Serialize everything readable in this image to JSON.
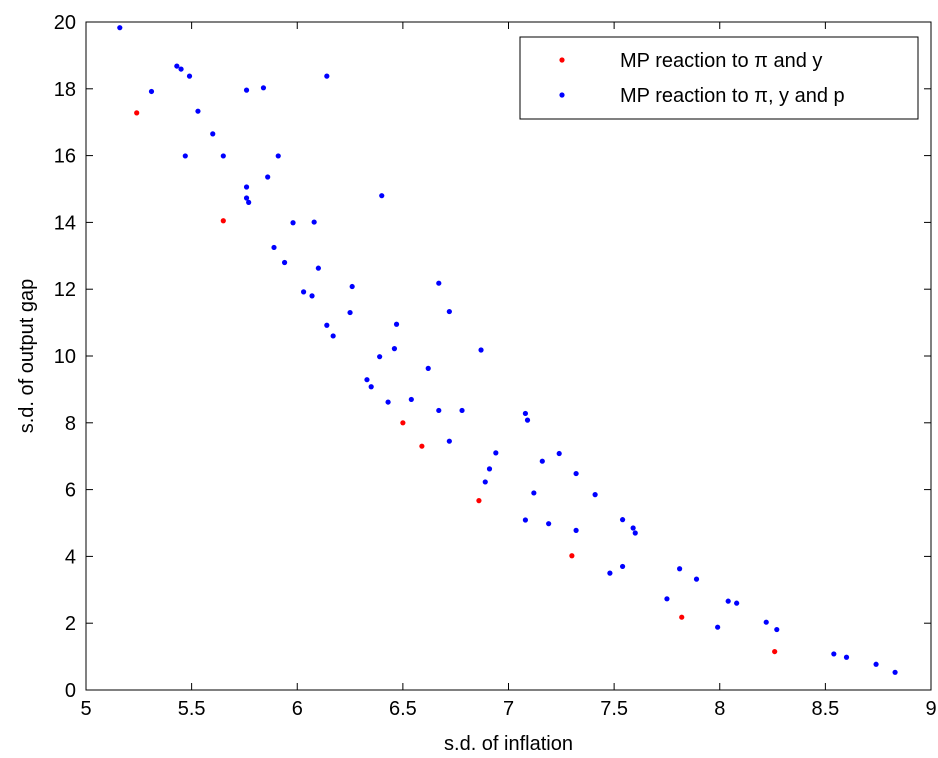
{
  "chart_data": {
    "type": "scatter",
    "xlabel": "s.d. of inflation",
    "ylabel": "s.d. of output gap",
    "xlim": [
      5,
      9
    ],
    "ylim": [
      0,
      20
    ],
    "xticks": [
      "5",
      "5.5",
      "6",
      "6.5",
      "7",
      "7.5",
      "8",
      "8.5",
      "9"
    ],
    "yticks": [
      "0",
      "2",
      "4",
      "6",
      "8",
      "10",
      "12",
      "14",
      "16",
      "18",
      "20"
    ],
    "grid": false,
    "legend_position": "top-right",
    "series": [
      {
        "name": "MP reaction to π and y",
        "color": "#ff0000",
        "points": [
          [
            5.24,
            17.28
          ],
          [
            5.65,
            14.05
          ],
          [
            6.5,
            8.0
          ],
          [
            6.59,
            7.3
          ],
          [
            6.86,
            5.67
          ],
          [
            7.3,
            4.02
          ],
          [
            7.82,
            2.18
          ],
          [
            8.26,
            1.15
          ]
        ]
      },
      {
        "name": "MP reaction to π, y and p",
        "color": "#0000ff",
        "points": [
          [
            5.16,
            19.83
          ],
          [
            5.43,
            18.68
          ],
          [
            5.45,
            18.59
          ],
          [
            5.49,
            18.38
          ],
          [
            5.31,
            17.92
          ],
          [
            5.53,
            17.33
          ],
          [
            5.6,
            16.65
          ],
          [
            5.47,
            15.99
          ],
          [
            5.65,
            15.99
          ],
          [
            5.76,
            17.96
          ],
          [
            5.84,
            18.03
          ],
          [
            6.14,
            18.38
          ],
          [
            5.76,
            15.06
          ],
          [
            5.76,
            14.73
          ],
          [
            5.77,
            14.6
          ],
          [
            5.86,
            15.36
          ],
          [
            5.91,
            15.99
          ],
          [
            5.98,
            13.99
          ],
          [
            6.08,
            14.01
          ],
          [
            5.89,
            13.25
          ],
          [
            5.94,
            12.8
          ],
          [
            6.1,
            12.63
          ],
          [
            6.03,
            11.92
          ],
          [
            6.07,
            11.8
          ],
          [
            6.26,
            12.08
          ],
          [
            6.25,
            11.3
          ],
          [
            6.14,
            10.92
          ],
          [
            6.17,
            10.6
          ],
          [
            6.4,
            14.8
          ],
          [
            6.47,
            10.95
          ],
          [
            6.46,
            10.22
          ],
          [
            6.39,
            9.98
          ],
          [
            6.62,
            9.63
          ],
          [
            6.67,
            12.18
          ],
          [
            6.72,
            11.33
          ],
          [
            6.33,
            9.29
          ],
          [
            6.35,
            9.08
          ],
          [
            6.43,
            8.62
          ],
          [
            6.54,
            8.7
          ],
          [
            6.67,
            8.37
          ],
          [
            6.78,
            8.37
          ],
          [
            6.87,
            10.18
          ],
          [
            6.72,
            7.45
          ],
          [
            7.08,
            8.28
          ],
          [
            7.09,
            8.08
          ],
          [
            6.94,
            7.1
          ],
          [
            6.91,
            6.62
          ],
          [
            6.89,
            6.23
          ],
          [
            7.24,
            7.08
          ],
          [
            7.16,
            6.85
          ],
          [
            7.12,
            5.9
          ],
          [
            7.32,
            6.48
          ],
          [
            7.41,
            5.85
          ],
          [
            7.08,
            5.09
          ],
          [
            7.19,
            4.98
          ],
          [
            7.32,
            4.78
          ],
          [
            7.54,
            5.1
          ],
          [
            7.59,
            4.85
          ],
          [
            7.6,
            4.7
          ],
          [
            7.54,
            3.7
          ],
          [
            7.48,
            3.5
          ],
          [
            7.81,
            3.63
          ],
          [
            7.89,
            3.32
          ],
          [
            7.75,
            2.73
          ],
          [
            8.04,
            2.66
          ],
          [
            8.08,
            2.6
          ],
          [
            7.99,
            1.88
          ],
          [
            8.22,
            2.03
          ],
          [
            8.27,
            1.81
          ],
          [
            8.54,
            1.08
          ],
          [
            8.6,
            0.98
          ],
          [
            8.74,
            0.77
          ],
          [
            8.83,
            0.53
          ]
        ]
      }
    ]
  }
}
